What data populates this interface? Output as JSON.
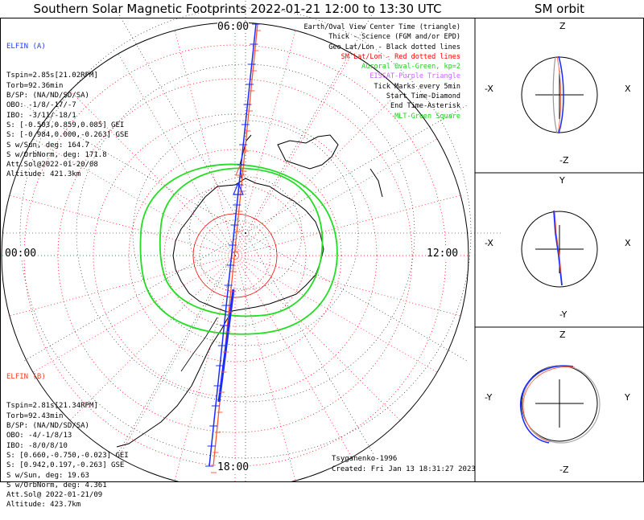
{
  "title": "Southern Solar Magnetic Footprints 2022-01-21 12:00 to 13:30 UTC",
  "sm_title": "SM orbit",
  "clock_labels": {
    "top": "06:00",
    "bottom": "18:00",
    "left": "00:00",
    "right": "12:00"
  },
  "elfin_a": {
    "name": "ELFIN (A)",
    "color": "#1f3fff",
    "lines": [
      "Tspin=2.85s[21.02RPM]",
      "Torb=92.36min",
      "B/SP: (NA/ND/SD/SA)",
      "OBO: -1/8/-17/-7",
      "IBO: -3/11/-18/1",
      "S: [-0.503,0.859,0.085] GEI",
      "S: [-0.984,0.000,-0.263] GSE",
      "S w/Sun, deg: 164.7",
      "S w/OrbNorm, deg: 171.8",
      "Att.Sol@2022-01-20/08",
      "Altitude: 421.3km"
    ]
  },
  "elfin_b": {
    "name": "ELFIN (B)",
    "color": "#ff3b1f",
    "lines": [
      "Tspin=2.81s[21.34RPM]",
      "Torb=92.43min",
      "B/SP: (NA/ND/SD/SA)",
      "OBO: -4/-1/8/13",
      "IBO: -8/0/8/10",
      "S: [0.660,-0.750,-0.023] GEI",
      "S: [0.942,0.197,-0.263] GSE",
      "S w/Sun, deg: 19.63",
      "S w/OrbNorm, deg: 4.361",
      "Att.Sol@ 2022-01-21/09",
      "Altitude: 423.7km"
    ]
  },
  "legend": [
    {
      "text": "Earth/Oval View Center Time (triangle)",
      "color": "#000000"
    },
    {
      "text": "Thick - Science (FGM and/or EPD)",
      "color": "#000000"
    },
    {
      "text": "Geo Lat/Lon - Black dotted lines",
      "color": "#000000"
    },
    {
      "text": "SM Lat/Lon - Red dotted lines",
      "color": "#ff0000",
      "highlight": true
    },
    {
      "text": "Auroral Oval-Green, kp=2",
      "color": "#22cc22"
    },
    {
      "text": "EISCAT-Purple Triangle",
      "color": "#cc66ff"
    },
    {
      "text": "Tick Marks every 5min",
      "color": "#000000"
    },
    {
      "text": "Start Time-Diamond",
      "color": "#000000"
    },
    {
      "text": "End Time-Asterisk",
      "color": "#000000"
    },
    {
      "text": "MLT-Green Square",
      "color": "#22cc22"
    }
  ],
  "credit": "Tsyganenko-1996",
  "created": "Created: Fri Jan 13 18:31:27 2023",
  "panels": [
    {
      "top": "Z",
      "bottom": "-Z",
      "left": "-X",
      "right": "X"
    },
    {
      "top": "Y",
      "bottom": "-Y",
      "left": "-X",
      "right": "X"
    },
    {
      "top": "Z",
      "bottom": "-Z",
      "left": "-Y",
      "right": "Y"
    }
  ],
  "colors": {
    "sm_grid": "#ff0000",
    "geo_grid": "#000000",
    "oval": "#22dd22",
    "track_a": "#1a2cff",
    "track_b": "#ff5533"
  }
}
